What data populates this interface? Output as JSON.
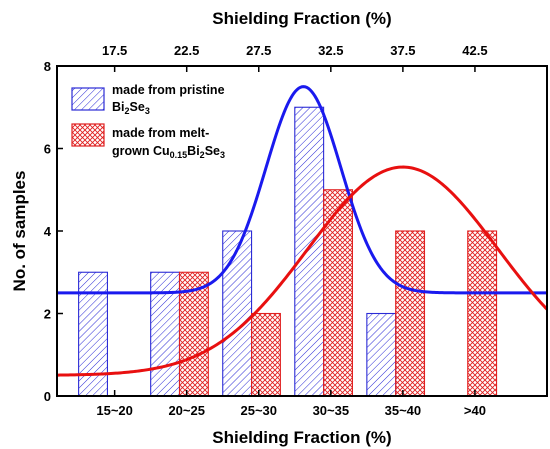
{
  "chart_data": {
    "type": "bar",
    "title": "",
    "xlabel": "Shielding Fraction (%)",
    "x2label": "Shielding Fraction (%)",
    "ylabel": "No. of samples",
    "categories": [
      "15~20",
      "20~25",
      "25~30",
      "30~35",
      "35~40",
      ">40"
    ],
    "top_ticks": [
      "17.5",
      "22.5",
      "27.5",
      "32.5",
      "37.5",
      "42.5"
    ],
    "ylim": [
      0,
      8
    ],
    "yticks": [
      "0",
      "2",
      "4",
      "6",
      "8"
    ],
    "series": [
      {
        "name_text": "made from pristine",
        "name_formula": [
          {
            "t": "Bi"
          },
          {
            "t": "2",
            "sub": true
          },
          {
            "t": "Se"
          },
          {
            "t": "3",
            "sub": true
          }
        ],
        "color": "#2b2bd6",
        "hatch": "diagonal",
        "values": [
          3,
          3,
          4,
          7,
          2,
          0
        ]
      },
      {
        "name_text": "made from melt-",
        "name_formula": [
          {
            "t": "grown Cu"
          },
          {
            "t": "0.15",
            "sub": true
          },
          {
            "t": "Bi"
          },
          {
            "t": "2",
            "sub": true
          },
          {
            "t": "Se"
          },
          {
            "t": "3",
            "sub": true
          }
        ],
        "color": "#e02020",
        "hatch": "crosshatch",
        "values": [
          0,
          3,
          2,
          5,
          4,
          4
        ]
      }
    ],
    "fits": [
      {
        "series": 0,
        "type": "gaussian",
        "color": "#1a1aee",
        "x_range": [
          13.5,
          47.5
        ],
        "baseline": 2.5,
        "amplitude": 5.0,
        "center": 30.6,
        "sigma": 2.6
      },
      {
        "series": 1,
        "type": "gaussian",
        "color": "#e81010",
        "x_range": [
          13.5,
          47.5
        ],
        "baseline": 0.5,
        "amplitude": 5.05,
        "center": 37.5,
        "sigma": 6.6
      }
    ],
    "x_range": [
      13.5,
      47.5
    ],
    "legend_position": "top-left",
    "grid": false
  }
}
